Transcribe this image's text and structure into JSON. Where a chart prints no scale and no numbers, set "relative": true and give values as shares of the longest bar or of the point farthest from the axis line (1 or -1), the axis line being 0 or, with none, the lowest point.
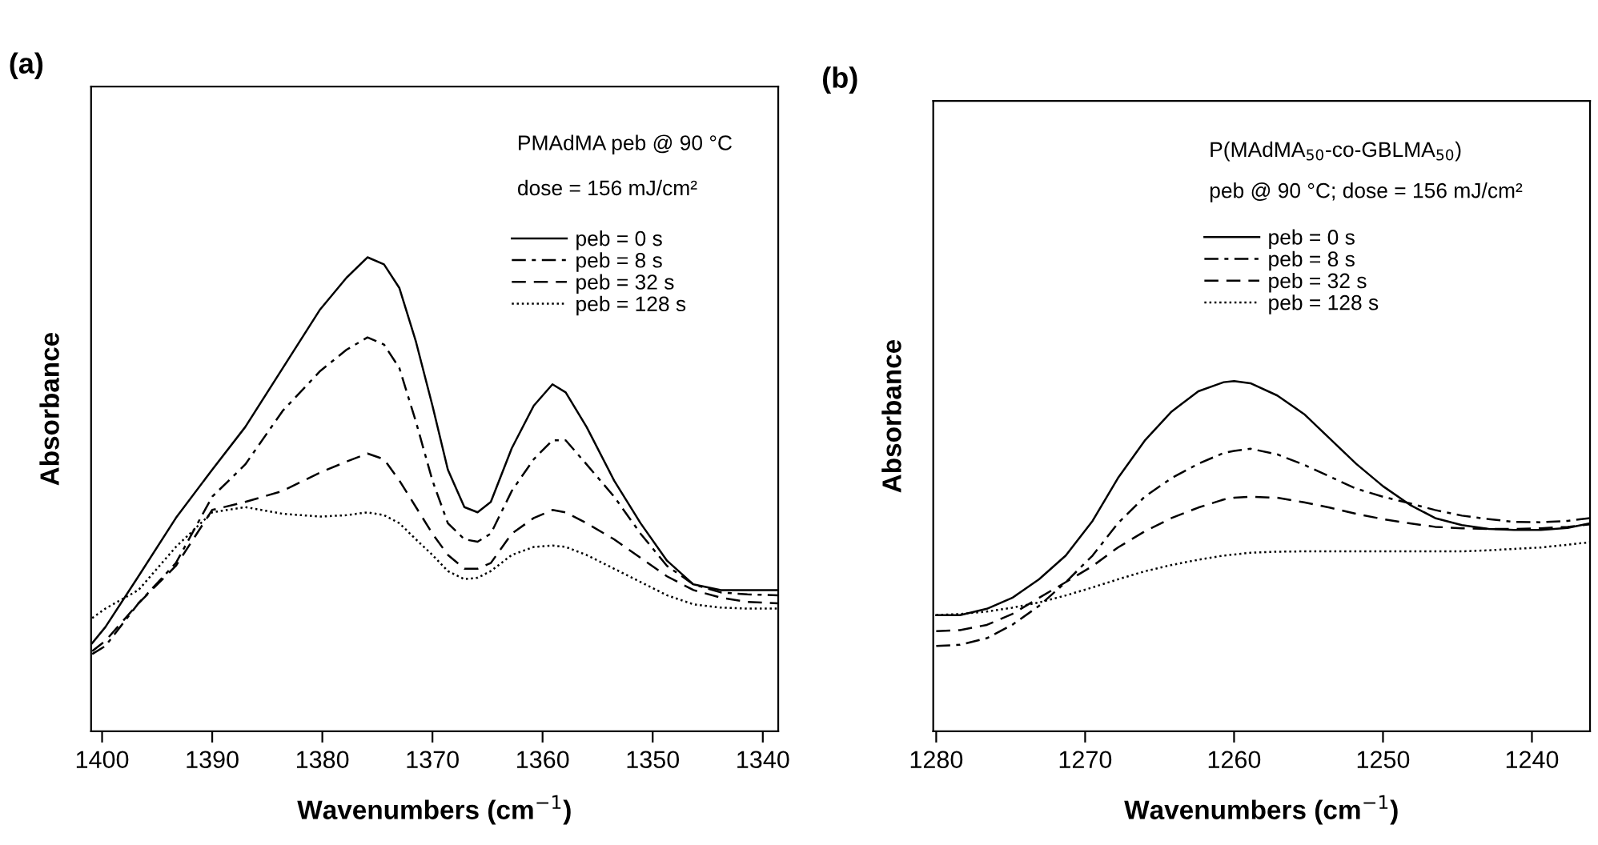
{
  "chart_data": [
    {
      "type": "line",
      "title": "(a)",
      "xlabel": "Wavenumbers (cm$^{−1}$)",
      "ylabel": "Absorbance",
      "relative": true,
      "tick_labels": "x",
      "grid": false,
      "legend": "top right",
      "marker": "none",
      "annotations": [
        "PMAdMA peb @ 90 °C",
        "dose = 156 mJ/cm²"
      ],
      "xlim": [
        1401,
        1338.6
      ],
      "xticks": [
        1400,
        1390,
        1380,
        1370,
        1360,
        1350,
        1340
      ],
      "x": [
        1400.9,
        1399.7,
        1396.7,
        1393.3,
        1390.0,
        1387.0,
        1383.6,
        1380.2,
        1377.8,
        1375.9,
        1374.4,
        1373.0,
        1371.5,
        1370.0,
        1368.6,
        1367.1,
        1365.9,
        1364.7,
        1362.8,
        1360.8,
        1359.1,
        1357.9,
        1356.0,
        1353.5,
        1351.1,
        1348.7,
        1346.3,
        1343.8,
        1341.4,
        1338.6
      ],
      "series": [
        {
          "name": "peb = 0 s",
          "color": "#000000",
          "line_style": "solid",
          "values": [
            0.186,
            0.22,
            0.327,
            0.45,
            0.552,
            0.642,
            0.766,
            0.89,
            0.957,
            1,
            0.985,
            0.935,
            0.822,
            0.687,
            0.552,
            0.473,
            0.462,
            0.484,
            0.597,
            0.687,
            0.732,
            0.715,
            0.642,
            0.529,
            0.439,
            0.36,
            0.31,
            0.298,
            0.298,
            0.298
          ]
        },
        {
          "name": "peb = 8 s",
          "color": "#000000",
          "line_style": "dashdot",
          "values": [
            0.163,
            0.18,
            0.27,
            0.355,
            0.495,
            0.563,
            0.676,
            0.76,
            0.805,
            0.831,
            0.816,
            0.766,
            0.653,
            0.529,
            0.439,
            0.405,
            0.4,
            0.417,
            0.507,
            0.574,
            0.614,
            0.614,
            0.563,
            0.495,
            0.417,
            0.349,
            0.31,
            0.293,
            0.289,
            0.287
          ]
        },
        {
          "name": "peb = 32 s",
          "color": "#000000",
          "line_style": "dashed",
          "values": [
            0.169,
            0.191,
            0.27,
            0.349,
            0.467,
            0.484,
            0.507,
            0.546,
            0.569,
            0.586,
            0.574,
            0.529,
            0.473,
            0.417,
            0.372,
            0.343,
            0.343,
            0.355,
            0.417,
            0.45,
            0.467,
            0.462,
            0.439,
            0.405,
            0.366,
            0.327,
            0.298,
            0.282,
            0.273,
            0.27
          ]
        },
        {
          "name": "peb = 128 s",
          "color": "#000000",
          "line_style": "dotted",
          "values": [
            0.239,
            0.259,
            0.298,
            0.389,
            0.462,
            0.473,
            0.459,
            0.453,
            0.456,
            0.462,
            0.456,
            0.439,
            0.405,
            0.372,
            0.338,
            0.321,
            0.324,
            0.338,
            0.372,
            0.389,
            0.392,
            0.389,
            0.372,
            0.343,
            0.315,
            0.287,
            0.268,
            0.261,
            0.259,
            0.259
          ]
        }
      ]
    },
    {
      "type": "line",
      "title": "(b)",
      "xlabel": "Wavenumbers (cm$^{−1}$)",
      "ylabel": "Absorbance",
      "relative": true,
      "tick_labels": "x",
      "grid": false,
      "legend": "top right",
      "marker": "none",
      "annotations": [
        "P(MAdMA$_{50}$-co-GBLMA$_{50}$)",
        "peb @ 90 °C; dose = 156 mJ/cm²"
      ],
      "xlim": [
        1280.2,
        1236.1
      ],
      "xticks": [
        1280,
        1270,
        1260,
        1250,
        1240
      ],
      "x": [
        1280,
        1278.4,
        1276.6,
        1274.9,
        1273.1,
        1271.3,
        1269.5,
        1267.8,
        1266.0,
        1264.2,
        1262.4,
        1260.7,
        1260.0,
        1258.9,
        1257.1,
        1255.3,
        1253.6,
        1251.8,
        1250.0,
        1248.2,
        1246.5,
        1244.7,
        1242.9,
        1241.2,
        1239.4,
        1237.6,
        1236.1
      ],
      "series": [
        {
          "name": "peb = 0 s",
          "color": "#000000",
          "line_style": "solid",
          "values": [
            0.332,
            0.332,
            0.35,
            0.381,
            0.434,
            0.502,
            0.601,
            0.723,
            0.83,
            0.913,
            0.971,
            0.997,
            1,
            0.994,
            0.959,
            0.906,
            0.837,
            0.764,
            0.7,
            0.647,
            0.609,
            0.589,
            0.578,
            0.575,
            0.575,
            0.581,
            0.594
          ]
        },
        {
          "name": "peb = 8 s",
          "color": "#000000",
          "line_style": "dashdot",
          "values": [
            0.244,
            0.247,
            0.266,
            0.304,
            0.358,
            0.426,
            0.502,
            0.594,
            0.67,
            0.723,
            0.764,
            0.795,
            0.801,
            0.807,
            0.791,
            0.761,
            0.728,
            0.693,
            0.67,
            0.651,
            0.632,
            0.616,
            0.606,
            0.598,
            0.597,
            0.601,
            0.609
          ]
        },
        {
          "name": "peb = 32 s",
          "color": "#000000",
          "line_style": "dashed",
          "values": [
            0.286,
            0.289,
            0.304,
            0.335,
            0.381,
            0.426,
            0.472,
            0.525,
            0.571,
            0.609,
            0.639,
            0.662,
            0.667,
            0.67,
            0.667,
            0.654,
            0.639,
            0.621,
            0.606,
            0.594,
            0.584,
            0.58,
            0.578,
            0.578,
            0.58,
            0.584,
            0.591
          ]
        },
        {
          "name": "peb = 128 s",
          "color": "#000000",
          "line_style": "dotted",
          "values": [
            0.332,
            0.335,
            0.342,
            0.353,
            0.368,
            0.388,
            0.411,
            0.434,
            0.457,
            0.475,
            0.49,
            0.502,
            0.505,
            0.51,
            0.513,
            0.514,
            0.514,
            0.514,
            0.514,
            0.514,
            0.514,
            0.514,
            0.517,
            0.521,
            0.525,
            0.533,
            0.54
          ]
        }
      ]
    }
  ]
}
